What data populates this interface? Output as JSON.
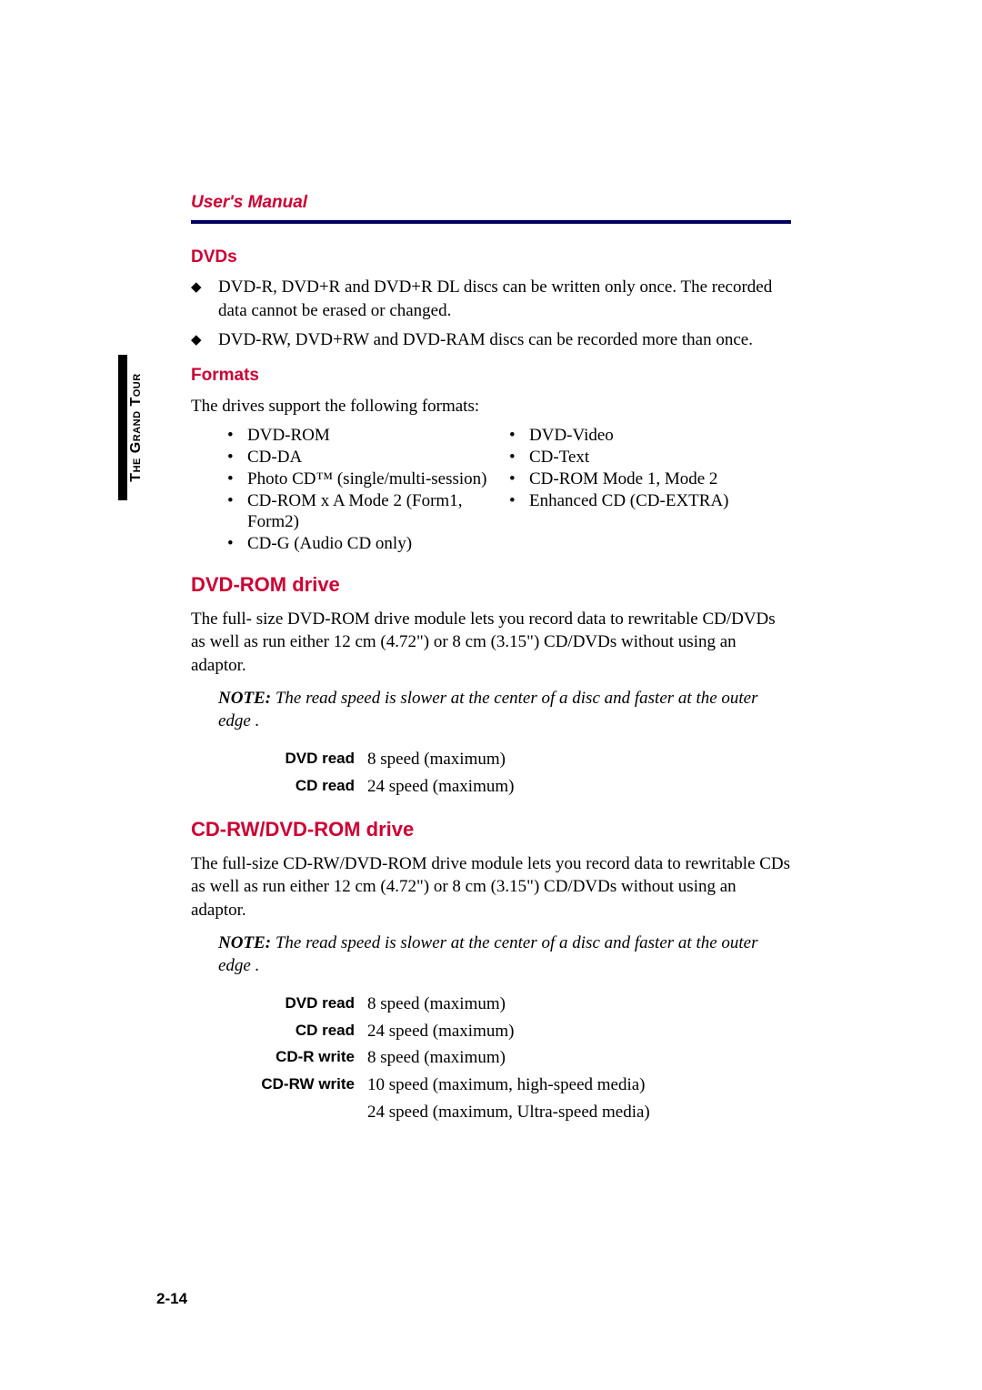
{
  "header": {
    "title": "User's Manual"
  },
  "sidebar": {
    "label": "The Grand Tour"
  },
  "page_number": "2-14",
  "dvds": {
    "heading": "DVDs",
    "items": [
      "DVD-R, DVD+R and DVD+R DL discs can be written only once. The recorded data cannot be erased or changed.",
      "DVD-RW, DVD+RW and DVD-RAM discs can be recorded more than once."
    ]
  },
  "formats": {
    "heading": "Formats",
    "intro": "The drives support the following formats:",
    "col1": [
      "DVD-ROM",
      "CD-DA",
      "Photo CD™ (single/multi-session)",
      "CD-ROM x A Mode 2 (Form1, Form2)",
      "CD-G (Audio CD only)"
    ],
    "col2": [
      "DVD-Video",
      "CD-Text",
      "CD-ROM Mode 1, Mode 2",
      "Enhanced CD (CD-EXTRA)"
    ]
  },
  "dvd_rom": {
    "heading": "DVD-ROM drive",
    "body": "The full- size DVD-ROM drive module lets you record data to rewritable CD/DVDs as well as run either 12 cm (4.72\") or 8 cm (3.15\") CD/DVDs without using an adaptor.",
    "note_label": "NOTE:",
    "note": "The read speed is slower at the center of a disc and faster at the outer edge .",
    "specs": [
      {
        "label": "DVD read",
        "value": "8 speed (maximum)"
      },
      {
        "label": "CD read",
        "value": "24 speed (maximum)"
      }
    ]
  },
  "cdrw": {
    "heading": "CD-RW/DVD-ROM drive",
    "body": "The full-size CD-RW/DVD-ROM drive module lets you record data to rewritable CDs as well as run either 12 cm (4.72\") or 8 cm (3.15\") CD/DVDs without using an adaptor.",
    "note_label": "NOTE:",
    "note": "The read speed is slower at the center of a disc and faster at the outer edge .",
    "specs": [
      {
        "label": "DVD read",
        "value": "8 speed (maximum)"
      },
      {
        "label": "CD read",
        "value": "24 speed (maximum)"
      },
      {
        "label": "CD-R write",
        "value": "8 speed (maximum)"
      },
      {
        "label": "CD-RW write",
        "value": "10 speed (maximum, high-speed media)"
      },
      {
        "label": "",
        "value": "24 speed (maximum, Ultra-speed media)"
      }
    ]
  }
}
